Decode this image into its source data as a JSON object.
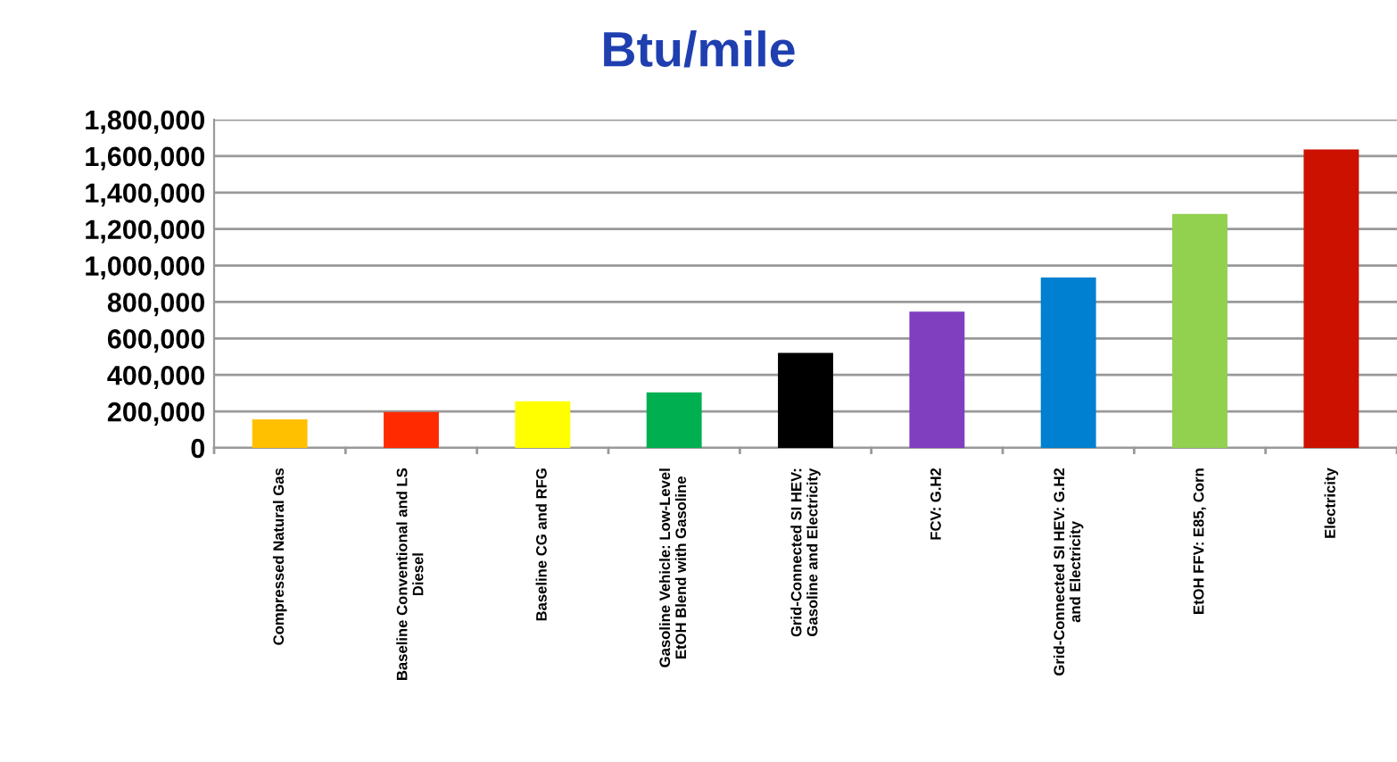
{
  "chart_data": {
    "type": "bar",
    "title": "Btu/mile",
    "categories": [
      "Compressed Natural Gas",
      "Baseline Conventional and LS Diesel",
      "Baseline CG and RFG",
      "Gasoline Vehicle: Low-Level EtOH Blend with Gasoline",
      "Grid-Connected SI HEV: Gasoline and Electricity",
      "FCV: G.H2",
      "Grid-Connected SI HEV: G.H2 and Electricity",
      "EtOH FFV: E85, Corn",
      "Electricity"
    ],
    "values": [
      157000,
      197000,
      256000,
      305000,
      521000,
      747000,
      934000,
      1283000,
      1636000
    ],
    "colors": [
      "#ffc000",
      "#ff2a00",
      "#ffff00",
      "#00b050",
      "#000000",
      "#7f3fbf",
      "#0080d0",
      "#92d050",
      "#cc1100"
    ],
    "ylim": [
      0,
      1800000
    ],
    "yticks": [
      {
        "value": 0,
        "label": "0"
      },
      {
        "value": 200000,
        "label": "200,000"
      },
      {
        "value": 400000,
        "label": "400,000"
      },
      {
        "value": 600000,
        "label": "600,000"
      },
      {
        "value": 800000,
        "label": "800,000"
      },
      {
        "value": 1000000,
        "label": "1,000,000"
      },
      {
        "value": 1200000,
        "label": "1,200,000"
      },
      {
        "value": 1400000,
        "label": "1,400,000"
      },
      {
        "value": 1600000,
        "label": "1,600,000"
      },
      {
        "value": 1800000,
        "label": "1,800,000"
      }
    ],
    "grid": "y"
  }
}
